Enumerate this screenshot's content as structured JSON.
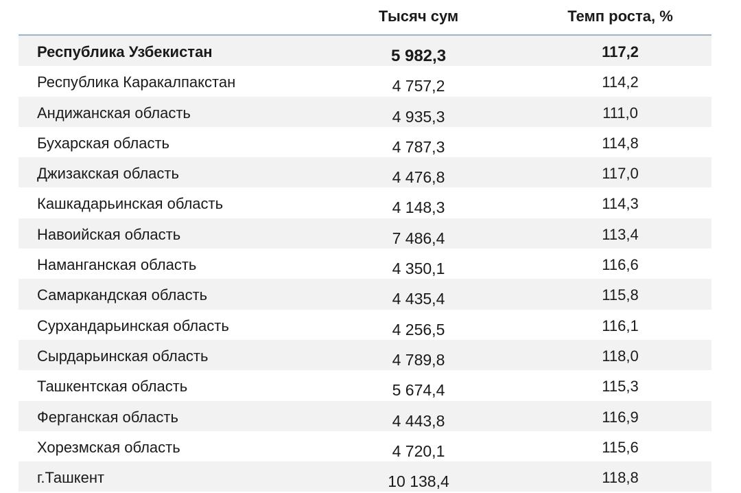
{
  "table": {
    "headers": {
      "region": "",
      "value": "Тысяч сум",
      "growth": "Темп роста, %"
    },
    "rows": [
      {
        "region": "Республика Узбекистан",
        "value": "5 982,3",
        "growth": "117,2"
      },
      {
        "region": "Республика Каракалпакстан",
        "value": "4 757,2",
        "growth": "114,2"
      },
      {
        "region": "Андижанская область",
        "value": "4 935,3",
        "growth": "111,0"
      },
      {
        "region": "Бухарская область",
        "value": "4 787,3",
        "growth": "114,8"
      },
      {
        "region": "Джизакская область",
        "value": "4 476,8",
        "growth": "117,0"
      },
      {
        "region": "Кашкадарьинская область",
        "value": "4 148,3",
        "growth": "114,3"
      },
      {
        "region": "Навоийская область",
        "value": "7 486,4",
        "growth": "113,4"
      },
      {
        "region": "Наманганская область",
        "value": "4 350,1",
        "growth": "116,6"
      },
      {
        "region": "Самаркандская область",
        "value": "4 435,4",
        "growth": "115,8"
      },
      {
        "region": "Сурхандарьинская область",
        "value": "4 256,5",
        "growth": "116,1"
      },
      {
        "region": "Сырдарьинская область",
        "value": "4 789,8",
        "growth": "118,0"
      },
      {
        "region": "Ташкентская область",
        "value": "5 674,4",
        "growth": "115,3"
      },
      {
        "region": "Ферганская область",
        "value": "4 443,8",
        "growth": "116,9"
      },
      {
        "region": "Хорезмская область",
        "value": "4 720,1",
        "growth": "115,6"
      },
      {
        "region": "г.Ташкент",
        "value": "10 138,4",
        "growth": "118,8"
      }
    ]
  }
}
